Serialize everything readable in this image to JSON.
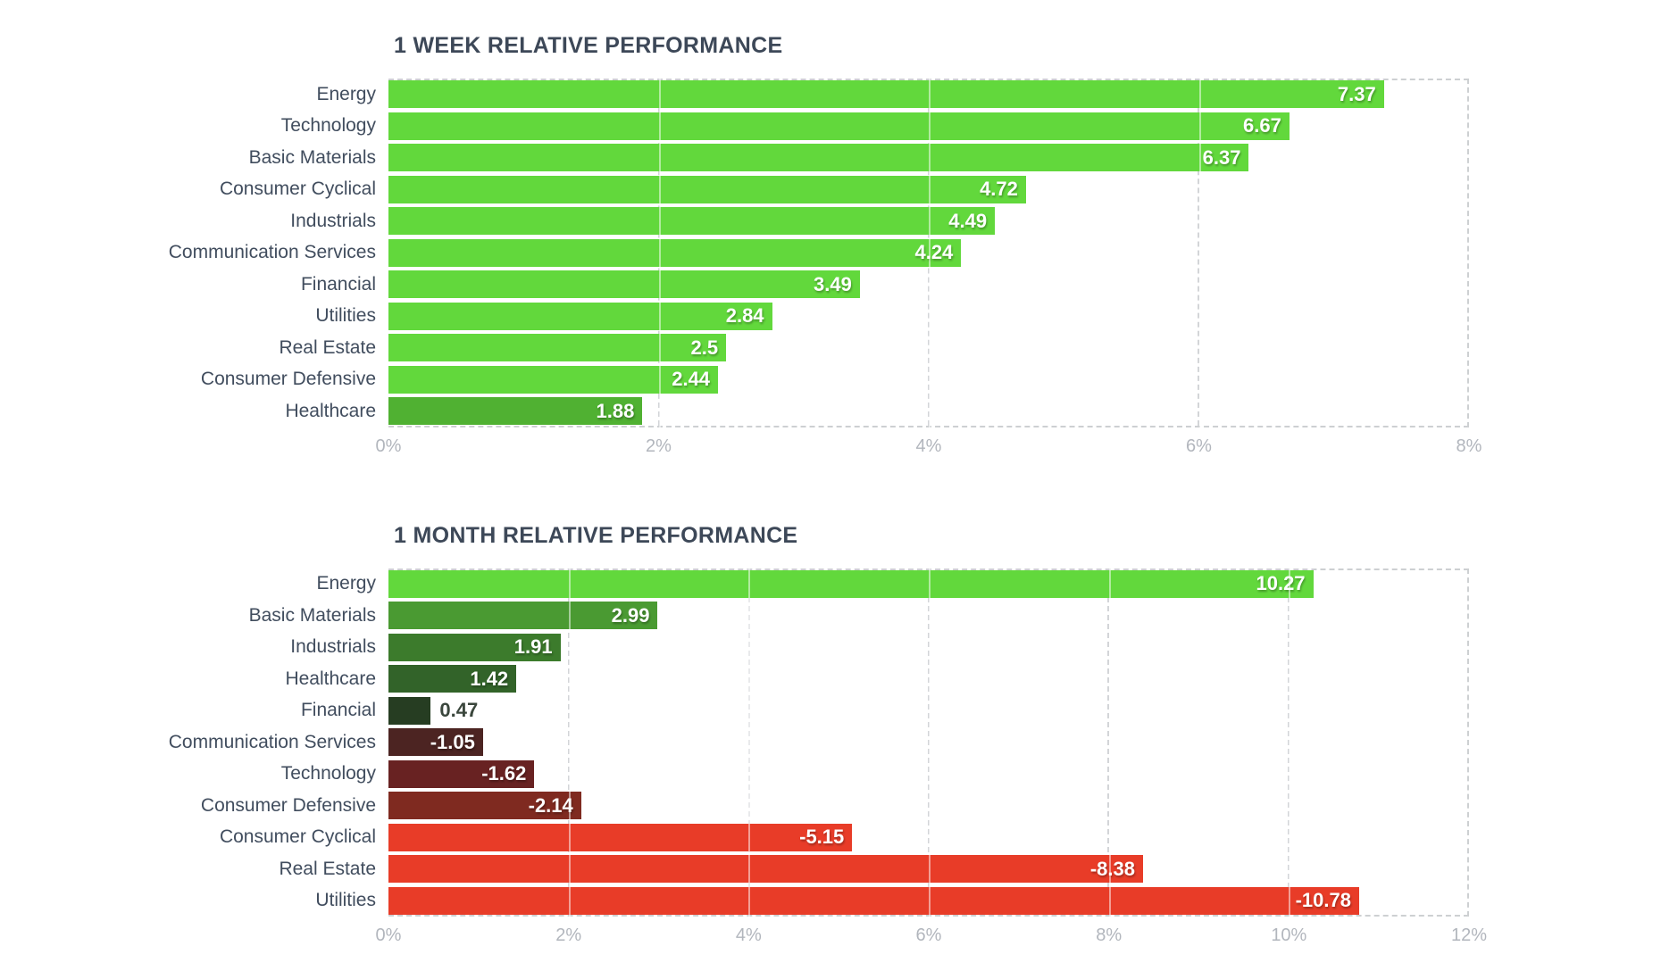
{
  "theme": {
    "background": "#ffffff",
    "title_color": "#3d4858",
    "category_label_color": "#414d5e",
    "tick_label_color": "#b2b6bd",
    "grid_color": "#d3d5d8",
    "value_label_color": "#ffffff",
    "outside_value_label_color": "#3a463c",
    "positive_bright_green": "#62d83c",
    "negative_bright_red": "#e83c28"
  },
  "chart_data": [
    {
      "type": "bar",
      "orientation": "horizontal",
      "title": "1 WEEK RELATIVE PERFORMANCE",
      "categories": [
        "Energy",
        "Technology",
        "Basic Materials",
        "Consumer Cyclical",
        "Industrials",
        "Communication Services",
        "Financial",
        "Utilities",
        "Real Estate",
        "Consumer Defensive",
        "Healthcare"
      ],
      "values": [
        7.37,
        6.67,
        6.37,
        4.72,
        4.49,
        4.24,
        3.49,
        2.84,
        2.5,
        2.44,
        1.88
      ],
      "display_values": [
        "7.37",
        "6.67",
        "6.37",
        "4.72",
        "4.49",
        "4.24",
        "3.49",
        "2.84",
        "2.5",
        "2.44",
        "1.88"
      ],
      "bar_colors": [
        "#62d83c",
        "#62d83c",
        "#62d83c",
        "#62d83c",
        "#62d83c",
        "#62d83c",
        "#62d83c",
        "#62d83c",
        "#62d83c",
        "#62d83c",
        "#50b132"
      ],
      "value_label_inside": [
        true,
        true,
        true,
        true,
        true,
        true,
        true,
        true,
        true,
        true,
        true
      ],
      "xticks": [
        "0%",
        "2%",
        "4%",
        "6%",
        "8%"
      ],
      "tick_values": [
        0,
        2,
        4,
        6,
        8
      ],
      "xlim": [
        0,
        8
      ],
      "xlabel": "",
      "ylabel": "",
      "grid": true,
      "legend": false,
      "value_label_position": "inside-end"
    },
    {
      "type": "bar",
      "orientation": "horizontal",
      "title": "1 MONTH RELATIVE PERFORMANCE",
      "categories": [
        "Energy",
        "Basic Materials",
        "Industrials",
        "Healthcare",
        "Financial",
        "Communication Services",
        "Technology",
        "Consumer Defensive",
        "Consumer Cyclical",
        "Real Estate",
        "Utilities"
      ],
      "values": [
        10.27,
        2.99,
        1.91,
        1.42,
        0.47,
        -1.05,
        -1.62,
        -2.14,
        -5.15,
        -8.38,
        -10.78
      ],
      "display_values": [
        "10.27",
        "2.99",
        "1.91",
        "1.42",
        "0.47",
        "-1.05",
        "-1.62",
        "-2.14",
        "-5.15",
        "-8.38",
        "-10.78"
      ],
      "bar_colors": [
        "#62d83c",
        "#4a9a32",
        "#3c7b2c",
        "#326329",
        "#263d22",
        "#4c2422",
        "#682222",
        "#7f2a20",
        "#e83c28",
        "#e83c28",
        "#e83c28"
      ],
      "value_label_inside": [
        true,
        true,
        true,
        true,
        false,
        true,
        true,
        true,
        true,
        true,
        true
      ],
      "xticks": [
        "0%",
        "2%",
        "4%",
        "6%",
        "8%",
        "10%",
        "12%"
      ],
      "tick_values": [
        0,
        2,
        4,
        6,
        8,
        10,
        12
      ],
      "xlim": [
        0,
        12
      ],
      "xlabel": "",
      "ylabel": "",
      "grid": true,
      "legend": false,
      "value_label_position": "inside-end",
      "note_bar_scaling": "bar lengths are proportional to absolute value"
    }
  ]
}
